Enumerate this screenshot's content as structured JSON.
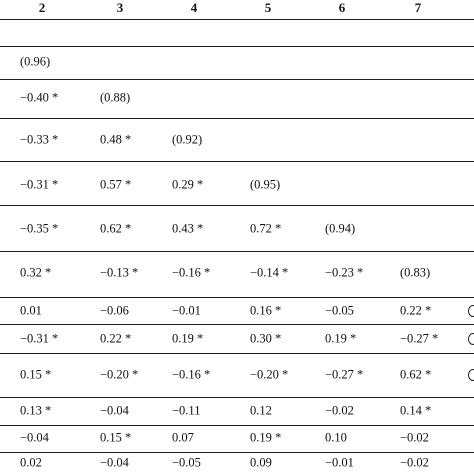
{
  "table": {
    "headers": [
      "2",
      "3",
      "4",
      "5",
      "6",
      "7"
    ],
    "rows": [
      [
        "",
        "",
        "",
        "",
        "",
        ""
      ],
      [
        "(0.96)",
        "",
        "",
        "",
        "",
        ""
      ],
      [
        "−0.40 *",
        "(0.88)",
        "",
        "",
        "",
        ""
      ],
      [
        "−0.33 *",
        "0.48 *",
        "(0.92)",
        "",
        "",
        ""
      ],
      [
        "−0.31 *",
        "0.57 *",
        "0.29 *",
        "(0.95)",
        "",
        ""
      ],
      [
        "−0.35 *",
        "0.62 *",
        "0.43 *",
        "0.72 *",
        "(0.94)",
        ""
      ],
      [
        "0.32 *",
        "−0.13 *",
        "−0.16 *",
        "−0.14 *",
        "−0.23 *",
        "(0.83)"
      ],
      [
        "0.01",
        "−0.06",
        "−0.01",
        "0.16 *",
        "−0.05",
        "0.22 *"
      ],
      [
        "−0.31 *",
        "0.22 *",
        "0.19 *",
        "0.30 *",
        "0.19 *",
        "−0.27 *"
      ],
      [
        "0.15 *",
        "−0.20 *",
        "−0.16 *",
        "−0.20 *",
        "−0.27 *",
        "0.62 *"
      ],
      [
        "0.13 *",
        "−0.04",
        "−0.11",
        "0.12",
        "−0.02",
        "0.14 *"
      ],
      [
        "−0.04",
        "0.15 *",
        "0.07",
        "0.19 *",
        "0.10",
        "−0.02"
      ],
      [
        "0.02",
        "−0.04",
        "−0.05",
        "0.09",
        "−0.01",
        "−0.02"
      ]
    ]
  }
}
